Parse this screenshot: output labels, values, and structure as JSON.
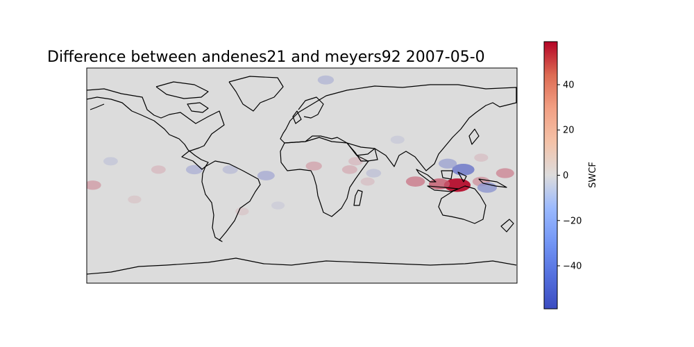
{
  "chart_data": {
    "type": "heatmap",
    "title": "Difference between andenes21 and meyers92 2007-05-0",
    "colorbar": {
      "label": "SWCF",
      "range": [
        -59,
        59
      ],
      "ticks": [
        40,
        20,
        0,
        -20,
        -40
      ],
      "tick_labels": [
        "40",
        "20",
        "0",
        "−20",
        "−40"
      ],
      "colormap": "coolwarm",
      "colors": {
        "low": "#3b4cc0",
        "mid": "#dddcdc",
        "high": "#b40426"
      }
    },
    "map": {
      "projection": "equirectangular",
      "lon_range": [
        -180,
        180
      ],
      "lat_range": [
        -90,
        90
      ],
      "coastlines": true,
      "background": "#dcdcdc"
    },
    "anomalies": [
      {
        "lon": 130,
        "lat": -8,
        "value": 55
      },
      {
        "lon": 115,
        "lat": -7,
        "value": 35
      },
      {
        "lon": 95,
        "lat": -5,
        "value": 28
      },
      {
        "lon": 150,
        "lat": -5,
        "value": 22
      },
      {
        "lon": 170,
        "lat": 2,
        "value": 25
      },
      {
        "lon": -175,
        "lat": -8,
        "value": 20
      },
      {
        "lon": 10,
        "lat": 8,
        "value": 18
      },
      {
        "lon": 40,
        "lat": 5,
        "value": 15
      },
      {
        "lon": 45,
        "lat": 12,
        "value": 12
      },
      {
        "lon": 55,
        "lat": -5,
        "value": 10
      },
      {
        "lon": -120,
        "lat": 5,
        "value": 12
      },
      {
        "lon": -140,
        "lat": -20,
        "value": 8
      },
      {
        "lon": 150,
        "lat": 15,
        "value": 10
      },
      {
        "lon": -50,
        "lat": -30,
        "value": 8
      },
      {
        "lon": 135,
        "lat": 5,
        "value": -40
      },
      {
        "lon": 155,
        "lat": -10,
        "value": -30
      },
      {
        "lon": 122,
        "lat": 10,
        "value": -25
      },
      {
        "lon": -30,
        "lat": 0,
        "value": -22
      },
      {
        "lon": -90,
        "lat": 5,
        "value": -20
      },
      {
        "lon": -60,
        "lat": 5,
        "value": -15
      },
      {
        "lon": -160,
        "lat": 12,
        "value": -12
      },
      {
        "lon": 20,
        "lat": 80,
        "value": -18
      },
      {
        "lon": 60,
        "lat": 2,
        "value": -14
      },
      {
        "lon": -20,
        "lat": -25,
        "value": -8
      },
      {
        "lon": 80,
        "lat": 30,
        "value": -10
      }
    ]
  }
}
